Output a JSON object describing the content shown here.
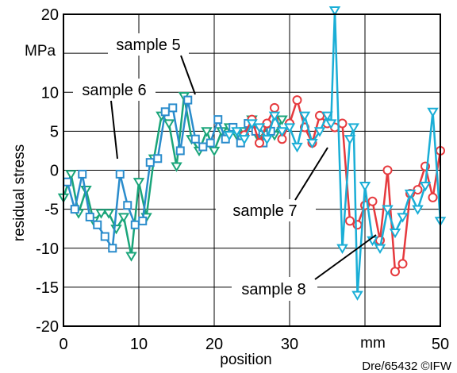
{
  "chart_data": {
    "type": "line",
    "xlabel": "position",
    "ylabel": "residual stress",
    "x_unit": "mm",
    "y_unit": "MPa",
    "xlim": [
      0,
      50
    ],
    "ylim": [
      -20,
      20
    ],
    "xticks": [
      0,
      10,
      20,
      30,
      50
    ],
    "yticks": [
      -20,
      -15,
      -10,
      -5,
      0,
      5,
      10,
      15,
      20
    ],
    "grid": true,
    "footer": "Dre/65432 ©IFW",
    "series": [
      {
        "name": "sample 5",
        "color": "#1aaed6",
        "marker": "triangle-down",
        "x": [
          22,
          23,
          24,
          25,
          26,
          27,
          28,
          29,
          30,
          31,
          32,
          33,
          34,
          35,
          35.5,
          36,
          37,
          38,
          38.5,
          39,
          40,
          41,
          42,
          43,
          44,
          45,
          46,
          47,
          48,
          49,
          50
        ],
        "y": [
          4.5,
          5,
          4,
          6,
          5.5,
          4,
          7,
          5,
          5.5,
          3,
          7,
          3.5,
          5,
          7,
          6,
          20.5,
          -10,
          4,
          5.5,
          -16,
          -2,
          -9,
          -10,
          -5,
          -8,
          -6,
          -3,
          -5,
          -2,
          7.5,
          -6.5
        ]
      },
      {
        "name": "sample 6",
        "color": "#2a8ccc",
        "marker": "square",
        "x": [
          0.5,
          1.5,
          2.5,
          3.5,
          4.5,
          5.5,
          6.5,
          7.5,
          8.5,
          9.5,
          10.5,
          11.5,
          12.5,
          13.5,
          14.5,
          15.5,
          16.5,
          17.5,
          18.5,
          19.5,
          20.5,
          21.5,
          22.5,
          23.5,
          24.5,
          25.5,
          26.5,
          27.5
        ],
        "y": [
          -1.5,
          -5,
          -0.5,
          -6,
          -7,
          -8.5,
          -10,
          -0.5,
          -4.5,
          -7,
          -6.5,
          1,
          1.5,
          7.5,
          8,
          2.5,
          9,
          4,
          3,
          3.5,
          6.5,
          4,
          5.5,
          3.5,
          6,
          5,
          3.5,
          5
        ]
      },
      {
        "name": "sample 7",
        "color": "#1aa57a",
        "marker": "triangle-down",
        "x": [
          0,
          1,
          2,
          3,
          4,
          5,
          6,
          7,
          8,
          9,
          10,
          11,
          12,
          13,
          14,
          15,
          16,
          17,
          18,
          19,
          20,
          21,
          22,
          23,
          24,
          25,
          26,
          27,
          28,
          29
        ],
        "y": [
          -3.5,
          -0.5,
          -5.5,
          -2.5,
          -6.5,
          -5.5,
          -5.5,
          -7.5,
          -6,
          -11,
          -1.5,
          -6,
          1.5,
          7,
          6,
          0.5,
          9.5,
          4,
          2.5,
          5,
          2.5,
          5,
          5.5,
          4.5,
          5,
          6.5,
          4,
          5.5,
          4.5,
          6.5
        ]
      },
      {
        "name": "sample 8",
        "color": "#e63a3e",
        "marker": "circle",
        "x": [
          24,
          25,
          26,
          27,
          28,
          29,
          30,
          31,
          32,
          33,
          34,
          35,
          36,
          37,
          38,
          39,
          40,
          41,
          42,
          43,
          44,
          45,
          46,
          47,
          48,
          49,
          50
        ],
        "y": [
          4.5,
          6.5,
          3.5,
          6,
          8,
          4,
          6,
          9,
          5.5,
          3.5,
          7,
          6,
          5.5,
          6,
          -6.5,
          -7,
          -4.5,
          -4,
          -9,
          0,
          -13,
          -12,
          -3,
          -2.5,
          0.5,
          -3.5,
          2.5
        ]
      }
    ],
    "annotations": [
      "sample 5",
      "sample 6",
      "sample 7",
      "sample 8"
    ]
  }
}
